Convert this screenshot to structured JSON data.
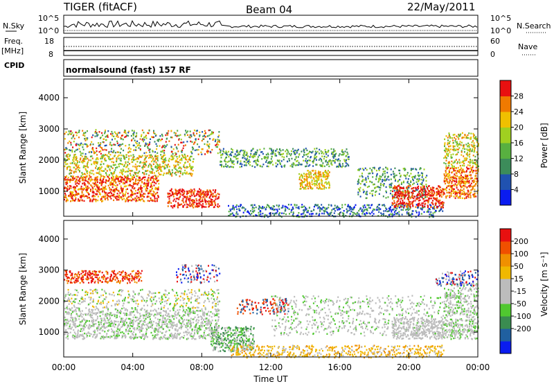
{
  "header": {
    "radar": "TIGER (fitACF)",
    "beam": "Beam 04",
    "date": "22/May/2011"
  },
  "strip_labels": {
    "nsky": "N.Sky",
    "nsky_hi": "10^5",
    "nsky_lo": "10^0",
    "nsearch": "N.Search",
    "nsearch_hi": "10^5",
    "nsearch_lo": "10^0",
    "freq": "Freq.",
    "freq_unit": "[MHz]",
    "freq_hi": "18",
    "freq_lo": "8",
    "nave": "Nave",
    "nave_hi": "60",
    "nave_lo": "0",
    "cpid": "CPID",
    "program": "normalsound (fast) 157 RF"
  },
  "colors": {
    "power_scale": [
      "#0a1cf0",
      "#2052b0",
      "#3c8c5a",
      "#58b040",
      "#a0d020",
      "#f0c000",
      "#f07a00",
      "#e81010"
    ],
    "velocity_scale": [
      "#e81010",
      "#f05000",
      "#f09000",
      "#f0b800",
      "#bcbcbc",
      "#bcbcbc",
      "#50c830",
      "#3a8c50",
      "#2060a0",
      "#0a1cf0"
    ]
  },
  "chart_data": [
    {
      "type": "heatmap",
      "panel": "power",
      "ylabel": "Slant Range [km]",
      "yticks": [
        1000,
        2000,
        3000,
        4000
      ],
      "ylim": [
        200,
        4600
      ],
      "xlim": [
        "00:00",
        "24:00"
      ],
      "colorbar": {
        "label": "Power [dB]",
        "ticks": [
          "4",
          "8",
          "12",
          "16",
          "20",
          "24",
          "28"
        ],
        "range": [
          0,
          32
        ]
      }
    },
    {
      "type": "heatmap",
      "panel": "velocity",
      "xlabel": "Time UT",
      "ylabel": "Slant Range [km]",
      "yticks": [
        1000,
        2000,
        3000,
        4000
      ],
      "ylim": [
        200,
        4600
      ],
      "xticks": [
        "00:00",
        "04:00",
        "08:00",
        "12:00",
        "16:00",
        "20:00",
        "00:00"
      ],
      "colorbar": {
        "label": "Velocity [m s⁻¹]",
        "ticks": [
          "200",
          "100",
          "50",
          "15",
          "-15",
          "-50",
          "-100",
          "-200"
        ]
      }
    }
  ]
}
